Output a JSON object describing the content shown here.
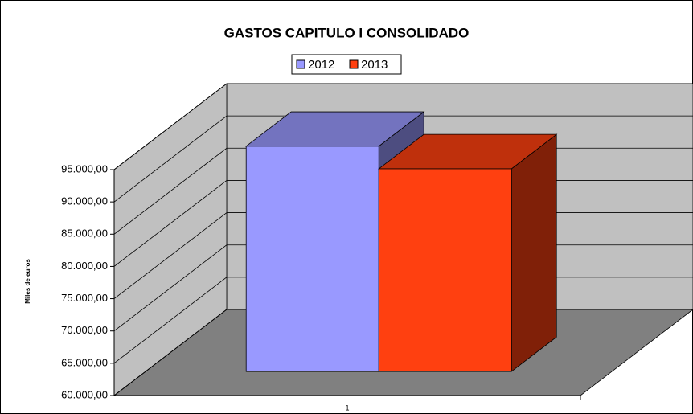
{
  "chart_data": {
    "type": "bar3d",
    "title": "GASTOS CAPITULO I CONSOLIDADO",
    "y_label": "Miles de euros",
    "categories": [
      "1"
    ],
    "series": [
      {
        "name": "2012",
        "color": "#9999ff",
        "values": [
          94900
        ]
      },
      {
        "name": "2013",
        "color": "#ff4010",
        "values": [
          91400
        ]
      }
    ],
    "ylim": [
      60000,
      95000
    ],
    "yticks": [
      {
        "value": 60000,
        "label": "60.000,00"
      },
      {
        "value": 65000,
        "label": "65.000,00"
      },
      {
        "value": 70000,
        "label": "70.000,00"
      },
      {
        "value": 75000,
        "label": "75.000,00"
      },
      {
        "value": 80000,
        "label": "80.000,00"
      },
      {
        "value": 85000,
        "label": "85.000,00"
      },
      {
        "value": 90000,
        "label": "90.000,00"
      },
      {
        "value": 95000,
        "label": "95.000,00"
      }
    ],
    "grid": true,
    "legend": "top"
  }
}
